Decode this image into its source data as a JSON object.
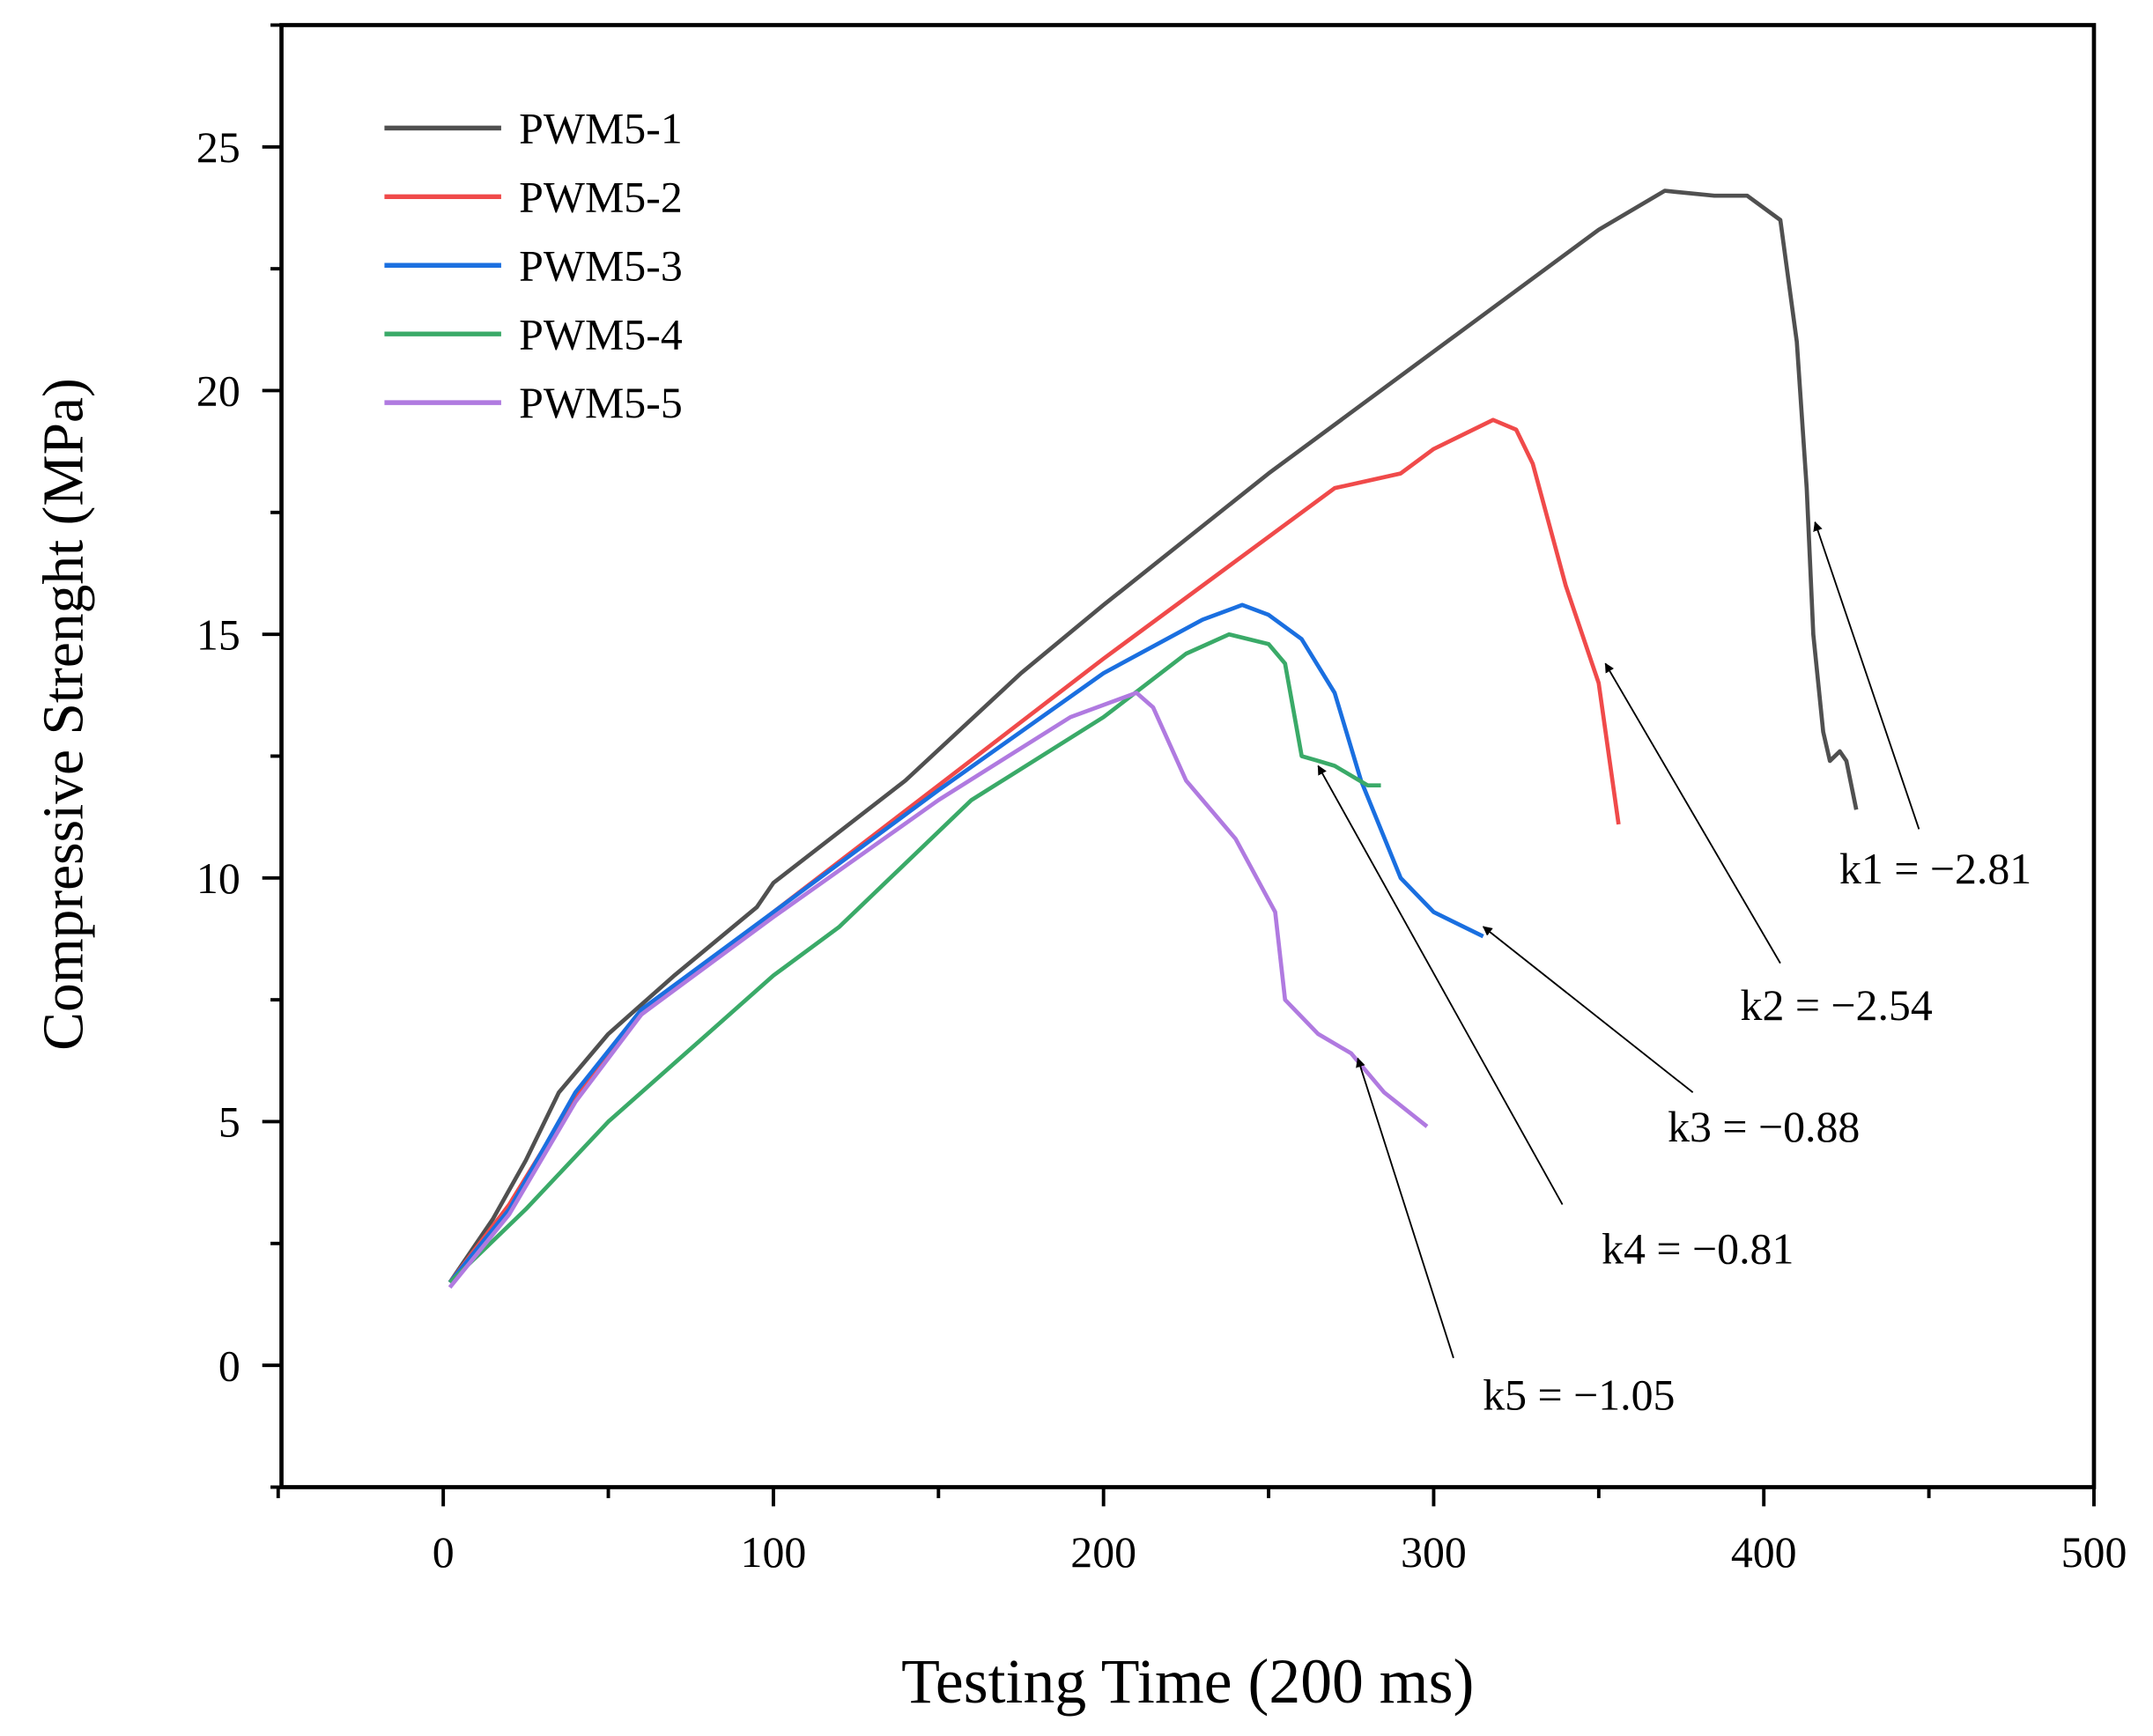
{
  "chart_data": {
    "type": "line",
    "title": "",
    "xlabel": "Testing Time (200 ms)",
    "ylabel": "Compressive Strenght (MPa)",
    "xlim": [
      -49,
      500
    ],
    "ylim": [
      -2.5,
      27.5
    ],
    "xticks": [
      0,
      100,
      200,
      300,
      400,
      500
    ],
    "yticks": [
      0,
      5,
      10,
      15,
      20,
      25
    ],
    "grid": false,
    "legend_position": "top-left",
    "series": [
      {
        "name": "PWM5-1",
        "color": "#505050",
        "points": [
          [
            2,
            1.7
          ],
          [
            15,
            3
          ],
          [
            25,
            4.2
          ],
          [
            35,
            5.6
          ],
          [
            50,
            6.8
          ],
          [
            70,
            8
          ],
          [
            95,
            9.4
          ],
          [
            100,
            9.9
          ],
          [
            140,
            12
          ],
          [
            175,
            14.2
          ],
          [
            200,
            15.6
          ],
          [
            250,
            18.3
          ],
          [
            300,
            20.8
          ],
          [
            350,
            23.3
          ],
          [
            370,
            24.1
          ],
          [
            385,
            24
          ],
          [
            395,
            24
          ],
          [
            405,
            23.5
          ],
          [
            410,
            21
          ],
          [
            413,
            18
          ],
          [
            415,
            15
          ],
          [
            418,
            13
          ],
          [
            420,
            12.4
          ],
          [
            423,
            12.6
          ],
          [
            425,
            12.4
          ],
          [
            428,
            11.4
          ]
        ]
      },
      {
        "name": "PWM5-2",
        "color": "#f04a4a",
        "points": [
          [
            2,
            1.7
          ],
          [
            20,
            3.3
          ],
          [
            40,
            5.5
          ],
          [
            60,
            7.2
          ],
          [
            100,
            9.3
          ],
          [
            150,
            11.9
          ],
          [
            200,
            14.5
          ],
          [
            240,
            16.5
          ],
          [
            270,
            18
          ],
          [
            290,
            18.3
          ],
          [
            300,
            18.8
          ],
          [
            318,
            19.4
          ],
          [
            325,
            19.2
          ],
          [
            330,
            18.5
          ],
          [
            340,
            16
          ],
          [
            350,
            14
          ],
          [
            356,
            11.1
          ]
        ]
      },
      {
        "name": "PWM5-3",
        "color": "#1a6fe0",
        "points": [
          [
            2,
            1.7
          ],
          [
            20,
            3.2
          ],
          [
            40,
            5.6
          ],
          [
            60,
            7.3
          ],
          [
            100,
            9.3
          ],
          [
            150,
            11.8
          ],
          [
            200,
            14.2
          ],
          [
            230,
            15.3
          ],
          [
            242,
            15.6
          ],
          [
            250,
            15.4
          ],
          [
            260,
            14.9
          ],
          [
            270,
            13.8
          ],
          [
            278,
            12
          ],
          [
            290,
            10
          ],
          [
            300,
            9.3
          ],
          [
            315,
            8.8
          ]
        ]
      },
      {
        "name": "PWM5-4",
        "color": "#3aaa68",
        "points": [
          [
            2,
            1.7
          ],
          [
            25,
            3.2
          ],
          [
            50,
            5
          ],
          [
            80,
            6.8
          ],
          [
            100,
            8
          ],
          [
            120,
            9
          ],
          [
            160,
            11.6
          ],
          [
            200,
            13.3
          ],
          [
            225,
            14.6
          ],
          [
            238,
            15
          ],
          [
            250,
            14.8
          ],
          [
            255,
            14.4
          ],
          [
            260,
            12.5
          ],
          [
            265,
            12.4
          ],
          [
            270,
            12.3
          ],
          [
            280,
            11.9
          ],
          [
            284,
            11.9
          ]
        ]
      },
      {
        "name": "PWM5-5",
        "color": "#b07ae0",
        "points": [
          [
            2,
            1.6
          ],
          [
            20,
            3.1
          ],
          [
            40,
            5.4
          ],
          [
            60,
            7.2
          ],
          [
            100,
            9.2
          ],
          [
            150,
            11.6
          ],
          [
            190,
            13.3
          ],
          [
            210,
            13.8
          ],
          [
            215,
            13.5
          ],
          [
            225,
            12
          ],
          [
            240,
            10.8
          ],
          [
            252,
            9.3
          ],
          [
            255,
            7.5
          ],
          [
            265,
            6.8
          ],
          [
            275,
            6.4
          ],
          [
            285,
            5.6
          ],
          [
            298,
            4.9
          ]
        ]
      }
    ],
    "annotations": [
      {
        "text": "k1 = −2.81",
        "tip": [
          415.5,
          17.3
        ],
        "tail": [
          447,
          11.0
        ],
        "label_at": [
          452,
          10.2
        ]
      },
      {
        "text": "k2 = −2.54",
        "tip": [
          352,
          14.4
        ],
        "tail": [
          405,
          8.25
        ],
        "label_at": [
          422,
          7.4
        ]
      },
      {
        "text": "k3 = −0.88",
        "tip": [
          315,
          9.0
        ],
        "tail": [
          378.5,
          5.6
        ],
        "label_at": [
          400,
          4.9
        ]
      },
      {
        "text": "k4 = −0.81",
        "tip": [
          265,
          12.3
        ],
        "tail": [
          339,
          3.3
        ],
        "label_at": [
          380,
          2.4
        ]
      },
      {
        "text": "k5 = −1.05",
        "tip": [
          277,
          6.3
        ],
        "tail": [
          306,
          0.15
        ],
        "label_at": [
          344,
          -0.6
        ]
      }
    ]
  }
}
